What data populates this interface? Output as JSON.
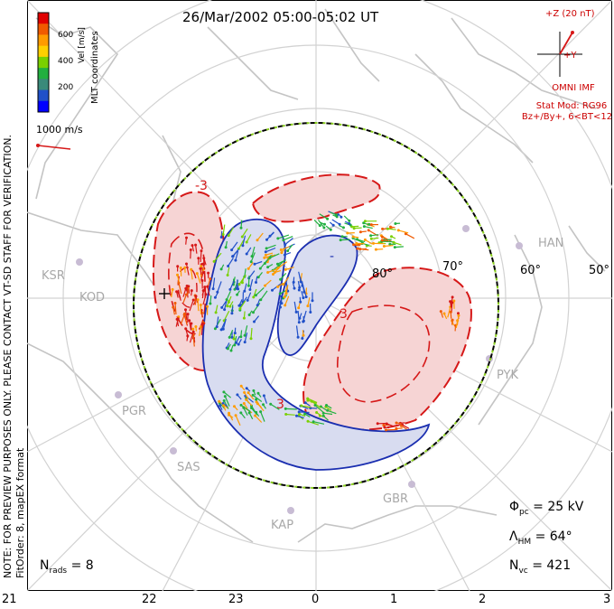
{
  "title": "26/Mar/2002 05:00-05:02 UT",
  "note_line1": "NOTE: FOR PREVIEW PURPOSES ONLY. PLEASE CONTACT VT-SD STAFF FOR VERIFICATION.",
  "note_line2": "FitOrder: 8, mapEX format",
  "coords_label": "MLT coordinates",
  "colorbar": {
    "label": "Vel [m/s]",
    "ticks": [
      "600",
      "400",
      "200"
    ],
    "colors": [
      "#e00000",
      "#f05a00",
      "#ff9b00",
      "#ffd000",
      "#7ad000",
      "#22b040",
      "#3a8a7a",
      "#2050c8",
      "#0000ff"
    ]
  },
  "ref_vector_label": "1000 m/s",
  "imf": {
    "bz_label": "+Z (20 nT)",
    "by_label": "+Y",
    "source": "OMNI IMF",
    "stat_mod": "Stat Mod: RG96",
    "bin": "Bz+/By+, 6<BT<12"
  },
  "stats": {
    "phi_pc_symbol": "Φ",
    "phi_pc_sub": "pc",
    "phi_pc_value": "= 25 kV",
    "lambda_symbol": "Λ",
    "lambda_sub": "HM",
    "lambda_value": "= 64°",
    "nvc_symbol": "N",
    "nvc_sub": "vc",
    "nvc_value": "= 421",
    "nrads_symbol": "N",
    "nrads_sub": "rads",
    "nrads_value": "= 8"
  },
  "mlt_ticks": [
    "21",
    "22",
    "23",
    "0",
    "1",
    "2",
    "3"
  ],
  "lat_labels": [
    "80°",
    "70°",
    "60°",
    "50°"
  ],
  "sites": [
    "KSR",
    "KOD",
    "PGR",
    "SAS",
    "KAP",
    "GBR",
    "PYK",
    "HAN"
  ],
  "contour_labels": [
    "-3",
    "3",
    "3",
    "-"
  ],
  "colors": {
    "positive_fill": "#f6d4d4",
    "negative_fill": "#d8dcf0",
    "positive_line": "#d61818",
    "negative_line": "#1a2eb0",
    "grid": "#cfcfcf",
    "coast": "#c4c4c4"
  }
}
